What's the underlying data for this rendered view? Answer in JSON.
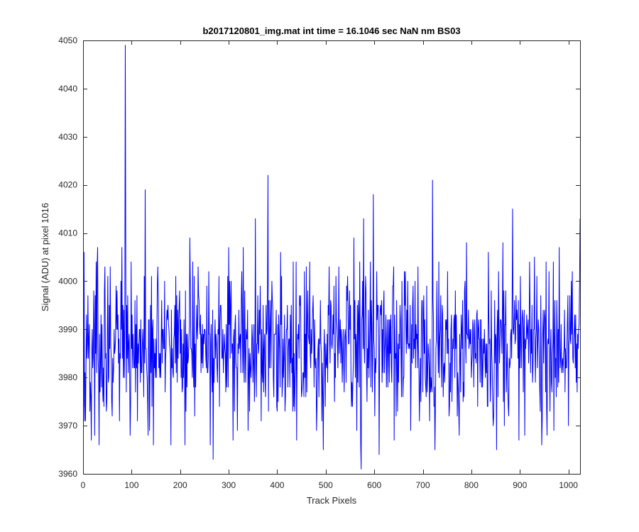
{
  "chart_data": {
    "type": "line",
    "title": "b2017120801_img.mat int time = 16.1046 sec  NaN nm BS03",
    "xlabel": "Track Pixels",
    "ylabel": "Signal (ADU) at pixel 1016",
    "xlim": [
      0,
      1024
    ],
    "ylim": [
      3960,
      4050
    ],
    "xticks": [
      0,
      100,
      200,
      300,
      400,
      500,
      600,
      700,
      800,
      900,
      1000
    ],
    "yticks": [
      3960,
      3970,
      3980,
      3990,
      4000,
      4010,
      4020,
      4030,
      4040,
      4050
    ],
    "grid": false,
    "legend": "none",
    "line_color": "#0000ff",
    "series": [
      {
        "x_start": 1,
        "x_step": 1,
        "notable_points": [
          [
            2,
            4006
          ],
          [
            5,
            3971
          ],
          [
            16,
            3976
          ],
          [
            30,
            4007
          ],
          [
            43,
            3974
          ],
          [
            60,
            3972
          ],
          [
            75,
            3971
          ],
          [
            80,
            4007
          ],
          [
            87,
            4049
          ],
          [
            98,
            3975
          ],
          [
            110,
            3982
          ],
          [
            125,
            3976
          ],
          [
            128,
            4019
          ],
          [
            134,
            3968
          ],
          [
            145,
            3966
          ],
          [
            155,
            3997
          ],
          [
            165,
            3990
          ],
          [
            181,
            3966
          ],
          [
            200,
            3985
          ],
          [
            210,
            3966
          ],
          [
            220,
            4009
          ],
          [
            230,
            3972
          ],
          [
            250,
            3990
          ],
          [
            262,
            3966
          ],
          [
            268,
            3963
          ],
          [
            280,
            4001
          ],
          [
            300,
            4007
          ],
          [
            320,
            3985
          ],
          [
            330,
            4007
          ],
          [
            340,
            3969
          ],
          [
            355,
            4013
          ],
          [
            367,
            3971
          ],
          [
            381,
            4022
          ],
          [
            392,
            3980
          ],
          [
            407,
            4006
          ],
          [
            420,
            3990
          ],
          [
            440,
            3967
          ],
          [
            460,
            4003
          ],
          [
            480,
            3984
          ],
          [
            495,
            3965
          ],
          [
            507,
            4003
          ],
          [
            520,
            3980
          ],
          [
            540,
            3990
          ],
          [
            558,
            4009
          ],
          [
            573,
            3961
          ],
          [
            578,
            4013
          ],
          [
            590,
            3985
          ],
          [
            598,
            4018
          ],
          [
            610,
            3964
          ],
          [
            620,
            3998
          ],
          [
            640,
            4003
          ],
          [
            660,
            3980
          ],
          [
            675,
            3969
          ],
          [
            690,
            4003
          ],
          [
            705,
            3980
          ],
          [
            720,
            4021
          ],
          [
            725,
            3965
          ],
          [
            740,
            3995
          ],
          [
            760,
            3975
          ],
          [
            775,
            3968
          ],
          [
            790,
            4008
          ],
          [
            800,
            3980
          ],
          [
            820,
            3992
          ],
          [
            835,
            4006
          ],
          [
            845,
            3970
          ],
          [
            852,
            3965
          ],
          [
            865,
            4008
          ],
          [
            875,
            3978
          ],
          [
            885,
            4015
          ],
          [
            900,
            3982
          ],
          [
            910,
            3968
          ],
          [
            930,
            4005
          ],
          [
            945,
            3966
          ],
          [
            960,
            4002
          ],
          [
            970,
            3969
          ],
          [
            981,
            4007
          ],
          [
            990,
            3985
          ],
          [
            1000,
            3970
          ],
          [
            1010,
            3983
          ],
          [
            1018,
            3977
          ],
          [
            1024,
            4013
          ]
        ]
      }
    ]
  }
}
